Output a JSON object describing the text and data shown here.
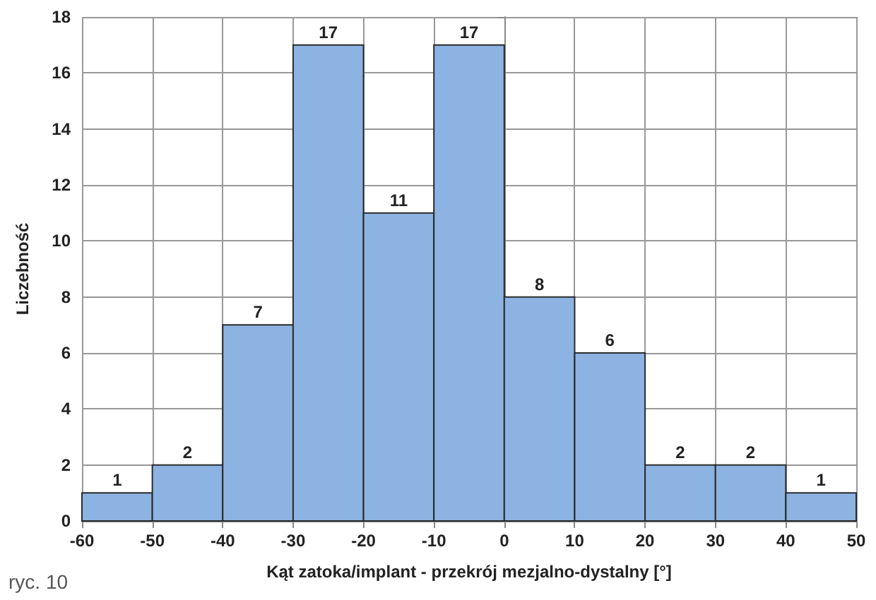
{
  "chart_data": {
    "type": "histogram",
    "xlabel": "Kąt zatoka/implant - przekrój mezjalno-dystalny [°]",
    "ylabel": "Liczebność",
    "bins": [
      -60,
      -50,
      -40,
      -30,
      -20,
      -10,
      0,
      10,
      20,
      30,
      40,
      50
    ],
    "values": [
      1,
      2,
      7,
      17,
      11,
      17,
      8,
      6,
      2,
      2,
      1
    ],
    "color": "#8db3e2",
    "xlim": [
      -60,
      50
    ],
    "xticks": [
      -60,
      -50,
      -40,
      -30,
      -20,
      -10,
      0,
      10,
      20,
      30,
      40,
      50
    ],
    "ylim": [
      0,
      18
    ],
    "yticks": [
      0,
      2,
      4,
      6,
      8,
      10,
      12,
      14,
      16,
      18
    ],
    "grid": true,
    "data_labels": true,
    "annotations": [
      "ryc. 10"
    ]
  }
}
